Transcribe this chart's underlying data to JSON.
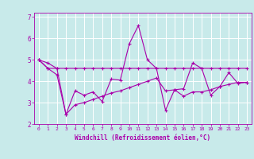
{
  "title": "",
  "xlabel": "Windchill (Refroidissement éolien,°C)",
  "background_color": "#c8eaea",
  "line_color": "#aa00aa",
  "grid_color": "#ffffff",
  "x": [
    0,
    1,
    2,
    3,
    4,
    5,
    6,
    7,
    8,
    9,
    10,
    11,
    12,
    13,
    14,
    15,
    16,
    17,
    18,
    19,
    20,
    21,
    22,
    23
  ],
  "line1": [
    5.0,
    4.85,
    4.6,
    2.45,
    3.55,
    3.35,
    3.5,
    3.05,
    4.1,
    4.05,
    5.75,
    6.6,
    5.0,
    4.6,
    2.65,
    3.6,
    3.65,
    4.85,
    4.6,
    3.35,
    3.75,
    4.4,
    3.9,
    3.95
  ],
  "line2": [
    5.0,
    4.6,
    4.6,
    4.6,
    4.6,
    4.6,
    4.6,
    4.6,
    4.6,
    4.6,
    4.6,
    4.6,
    4.6,
    4.6,
    4.6,
    4.6,
    4.6,
    4.6,
    4.6,
    4.6,
    4.6,
    4.6,
    4.6,
    4.6
  ],
  "line3": [
    5.0,
    4.6,
    4.3,
    2.45,
    2.9,
    3.0,
    3.15,
    3.3,
    3.45,
    3.55,
    3.7,
    3.85,
    4.0,
    4.15,
    3.55,
    3.6,
    3.3,
    3.5,
    3.5,
    3.6,
    3.75,
    3.85,
    3.95,
    3.95
  ],
  "xlim": [
    -0.5,
    23.5
  ],
  "ylim": [
    2.0,
    7.2
  ],
  "yticks": [
    2,
    3,
    4,
    5,
    6,
    7
  ],
  "xticks": [
    0,
    1,
    2,
    3,
    4,
    5,
    6,
    7,
    8,
    9,
    10,
    11,
    12,
    13,
    14,
    15,
    16,
    17,
    18,
    19,
    20,
    21,
    22,
    23
  ]
}
